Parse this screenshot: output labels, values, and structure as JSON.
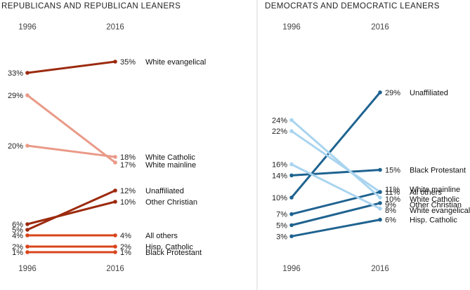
{
  "chart_data": [
    {
      "type": "slope",
      "title": "REPUBLICANS AND REPUBLICAN LEANERS",
      "x": [
        "1996",
        "2016"
      ],
      "series": [
        {
          "name": "White evangelical",
          "values": [
            33,
            35
          ],
          "color": "#9c2a0e"
        },
        {
          "name": "White Catholic",
          "values": [
            20,
            18
          ],
          "color": "#e99a88"
        },
        {
          "name": "White mainline",
          "values": [
            29,
            17
          ],
          "color": "#e99a88"
        },
        {
          "name": "Unaffiliated",
          "values": [
            5,
            12
          ],
          "color": "#9c2a0e"
        },
        {
          "name": "Other Christian",
          "values": [
            6,
            10
          ],
          "color": "#9c2a0e"
        },
        {
          "name": "All others",
          "values": [
            4,
            4
          ],
          "color": "#d9441b"
        },
        {
          "name": "Hisp. Catholic",
          "values": [
            2,
            2
          ],
          "color": "#d9441b"
        },
        {
          "name": "Black Protestant",
          "values": [
            1,
            1
          ],
          "color": "#d9441b"
        }
      ]
    },
    {
      "type": "slope",
      "title": "DEMOCRATS AND DEMOCRATIC LEANERS",
      "x": [
        "1996",
        "2016"
      ],
      "series": [
        {
          "name": "Unaffiliated",
          "values": [
            10,
            29
          ],
          "color": "#1f6390"
        },
        {
          "name": "Black Protestant",
          "values": [
            14,
            15
          ],
          "color": "#1f6390"
        },
        {
          "name": "White mainline",
          "values": [
            22,
            11
          ],
          "color": "#a9d4ef"
        },
        {
          "name": "All others",
          "values": [
            7,
            11
          ],
          "color": "#1f6390"
        },
        {
          "name": "White Catholic",
          "values": [
            24,
            10
          ],
          "color": "#a9d4ef"
        },
        {
          "name": "Other Christian",
          "values": [
            5,
            9
          ],
          "color": "#1f6390"
        },
        {
          "name": "White evangelical",
          "values": [
            16,
            8
          ],
          "color": "#a9d4ef"
        },
        {
          "name": "Hisp. Catholic",
          "values": [
            3,
            6
          ],
          "color": "#1f6390"
        }
      ]
    }
  ]
}
